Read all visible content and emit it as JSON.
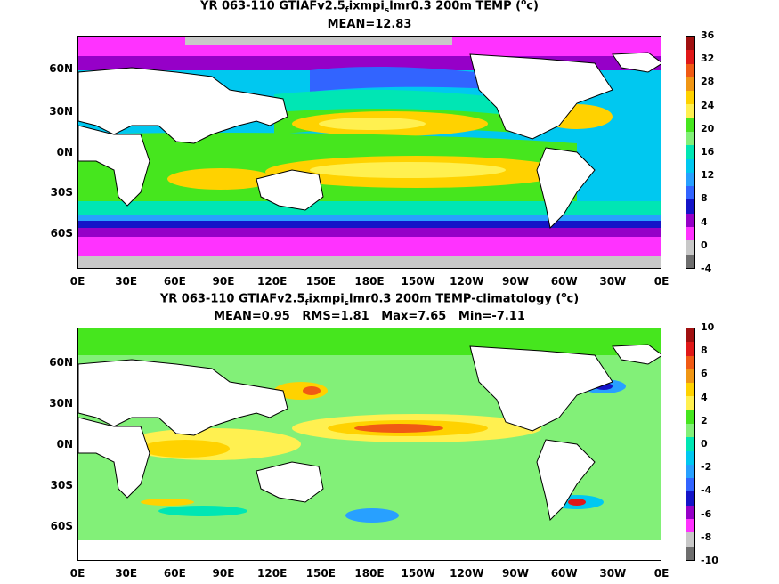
{
  "top": {
    "title_pre": "YR 063-110 GTIAFv2.5",
    "title_sub1": "f",
    "title_mid": "ixmpi",
    "title_sub2": "s",
    "title_post": "lmr0.3 200m TEMP (",
    "title_sup": "o",
    "title_end": "c)",
    "stats": "MEAN=12.83",
    "colorbar_labels": [
      "36",
      "32",
      "28",
      "24",
      "20",
      "16",
      "12",
      "8",
      "4",
      "0",
      "-4"
    ],
    "colorbar_colors": [
      "#a01010",
      "#e01818",
      "#f05a14",
      "#f09614",
      "#ffd200",
      "#fff050",
      "#46e61e",
      "#82f078",
      "#00e6b4",
      "#00c8f0",
      "#28a0ff",
      "#3264ff",
      "#1414c8",
      "#9600c8",
      "#ff32ff",
      "#c8c8c8",
      "#6e6e6e"
    ]
  },
  "bottom": {
    "title_pre": "YR 063-110 GTIAFv2.5",
    "title_sub1": "f",
    "title_mid": "ixmpi",
    "title_sub2": "s",
    "title_post": "lmr0.3 200m TEMP-climatology (",
    "title_sup": "o",
    "title_end": "c)",
    "stats": "MEAN=0.95   RMS=1.81   Max=7.65   Min=-7.11",
    "colorbar_labels": [
      "10",
      "8",
      "6",
      "4",
      "2",
      "0",
      "-2",
      "-4",
      "-6",
      "-8",
      "-10"
    ],
    "colorbar_colors": [
      "#a01010",
      "#e01818",
      "#f05a14",
      "#f09614",
      "#ffd200",
      "#fff050",
      "#46e61e",
      "#82f078",
      "#00e6b4",
      "#00c8f0",
      "#28a0ff",
      "#3264ff",
      "#1414c8",
      "#9600c8",
      "#ff32ff",
      "#c8c8c8",
      "#6e6e6e"
    ]
  },
  "lat_labels": [
    "60N",
    "30N",
    "0N",
    "30S",
    "60S"
  ],
  "lon_labels": [
    "0E",
    "30E",
    "60E",
    "90E",
    "120E",
    "150E",
    "180E",
    "150W",
    "120W",
    "90W",
    "60W",
    "30W",
    "0E"
  ]
}
